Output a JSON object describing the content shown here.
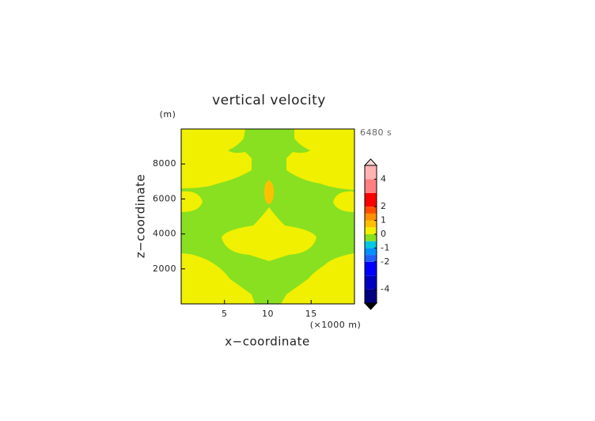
{
  "chart_data": {
    "type": "contour",
    "title": "vertical velocity",
    "y_unit": "(m)",
    "time_label": "6480 s",
    "xlabel": "x−coordinate",
    "ylabel": "z−coordinate",
    "x_unit": "(×1000 m)",
    "xlim": [
      0,
      20
    ],
    "ylim": [
      0,
      10000
    ],
    "xticks": [
      5,
      10,
      15
    ],
    "yticks": [
      2000,
      4000,
      6000,
      8000
    ],
    "colorbar": {
      "bounds": [
        -5,
        -4,
        -3,
        -2,
        -1.5,
        -1,
        -0.5,
        0,
        0.5,
        1,
        1.5,
        2,
        3,
        4,
        5
      ],
      "colors": [
        "#000080",
        "#0000c0",
        "#0000ff",
        "#2060ff",
        "#0090ff",
        "#00c8e0",
        "#88e020",
        "#f0f000",
        "#ffc000",
        "#ff9000",
        "#ff5000",
        "#ff0000",
        "#ff8080",
        "#ffb4b4"
      ],
      "ticks": [
        4,
        2,
        1,
        0,
        -1,
        -2,
        -4
      ],
      "over_color": "#ffd8d8",
      "under_color": "#000000"
    }
  }
}
